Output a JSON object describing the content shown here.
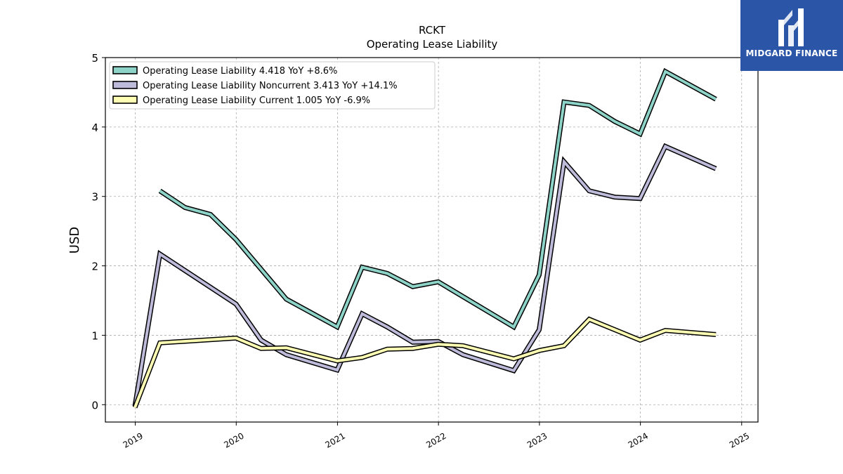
{
  "chart_data": {
    "type": "line",
    "title": "RCKT",
    "subtitle": "Operating Lease Liability",
    "xlabel": "",
    "ylabel": "USD",
    "xlim": [
      "2018-09-15",
      "2025-03-01"
    ],
    "ylim": [
      -0.25,
      5.0
    ],
    "yticks": [
      0,
      1,
      2,
      3,
      4,
      5
    ],
    "xticks": [
      "2019",
      "2020",
      "2021",
      "2022",
      "2023",
      "2024",
      "2025"
    ],
    "grid": true,
    "legend_position": "top-left",
    "series": [
      {
        "name": "Operating Lease Liability  4.418 YoY +8.6%",
        "color": "#8dd3c7",
        "points": [
          [
            "2019-03-31",
            3.08
          ],
          [
            "2019-06-30",
            2.84
          ],
          [
            "2019-09-30",
            2.74
          ],
          [
            "2019-12-31",
            2.38
          ],
          [
            "2020-06-30",
            1.52
          ],
          [
            "2020-12-31",
            1.12
          ],
          [
            "2021-03-31",
            1.98
          ],
          [
            "2021-06-30",
            1.89
          ],
          [
            "2021-09-30",
            1.7
          ],
          [
            "2021-12-31",
            1.77
          ],
          [
            "2022-09-30",
            1.12
          ],
          [
            "2022-12-31",
            1.87
          ],
          [
            "2023-03-31",
            4.36
          ],
          [
            "2023-06-30",
            4.31
          ],
          [
            "2023-09-30",
            4.08
          ],
          [
            "2023-12-31",
            3.9
          ],
          [
            "2024-03-31",
            4.8
          ],
          [
            "2024-09-30",
            4.4
          ]
        ]
      },
      {
        "name": "Operating Lease Liability Noncurrent  3.413 YoY +14.1%",
        "color": "#bebada",
        "points": [
          [
            "2018-12-31",
            -0.02
          ],
          [
            "2019-03-31",
            2.17
          ],
          [
            "2019-12-31",
            1.45
          ],
          [
            "2020-03-31",
            0.93
          ],
          [
            "2020-06-30",
            0.72
          ],
          [
            "2020-12-31",
            0.5
          ],
          [
            "2021-03-31",
            1.31
          ],
          [
            "2021-06-30",
            1.12
          ],
          [
            "2021-09-30",
            0.9
          ],
          [
            "2021-12-31",
            0.91
          ],
          [
            "2022-03-31",
            0.72
          ],
          [
            "2022-09-30",
            0.49
          ],
          [
            "2022-12-31",
            1.08
          ],
          [
            "2023-03-31",
            3.5
          ],
          [
            "2023-06-30",
            3.08
          ],
          [
            "2023-09-30",
            2.99
          ],
          [
            "2023-12-31",
            2.97
          ],
          [
            "2024-03-31",
            3.72
          ],
          [
            "2024-09-30",
            3.4
          ]
        ]
      },
      {
        "name": "Operating Lease Liability Current  1.005 YoY -6.9%",
        "color": "#ffffb3",
        "points": [
          [
            "2018-12-31",
            -0.04
          ],
          [
            "2019-03-31",
            0.89
          ],
          [
            "2019-12-31",
            0.96
          ],
          [
            "2020-03-31",
            0.81
          ],
          [
            "2020-06-30",
            0.82
          ],
          [
            "2020-12-31",
            0.63
          ],
          [
            "2021-03-31",
            0.68
          ],
          [
            "2021-06-30",
            0.8
          ],
          [
            "2021-09-30",
            0.81
          ],
          [
            "2021-12-31",
            0.87
          ],
          [
            "2022-03-31",
            0.85
          ],
          [
            "2022-09-30",
            0.66
          ],
          [
            "2022-12-31",
            0.78
          ],
          [
            "2023-03-31",
            0.85
          ],
          [
            "2023-06-30",
            1.23
          ],
          [
            "2023-09-30",
            1.08
          ],
          [
            "2023-12-31",
            0.93
          ],
          [
            "2024-03-31",
            1.07
          ],
          [
            "2024-09-30",
            1.01
          ]
        ]
      }
    ]
  },
  "logo": {
    "text": "MIDGARD FINANCE",
    "background": "#2b56a8"
  }
}
